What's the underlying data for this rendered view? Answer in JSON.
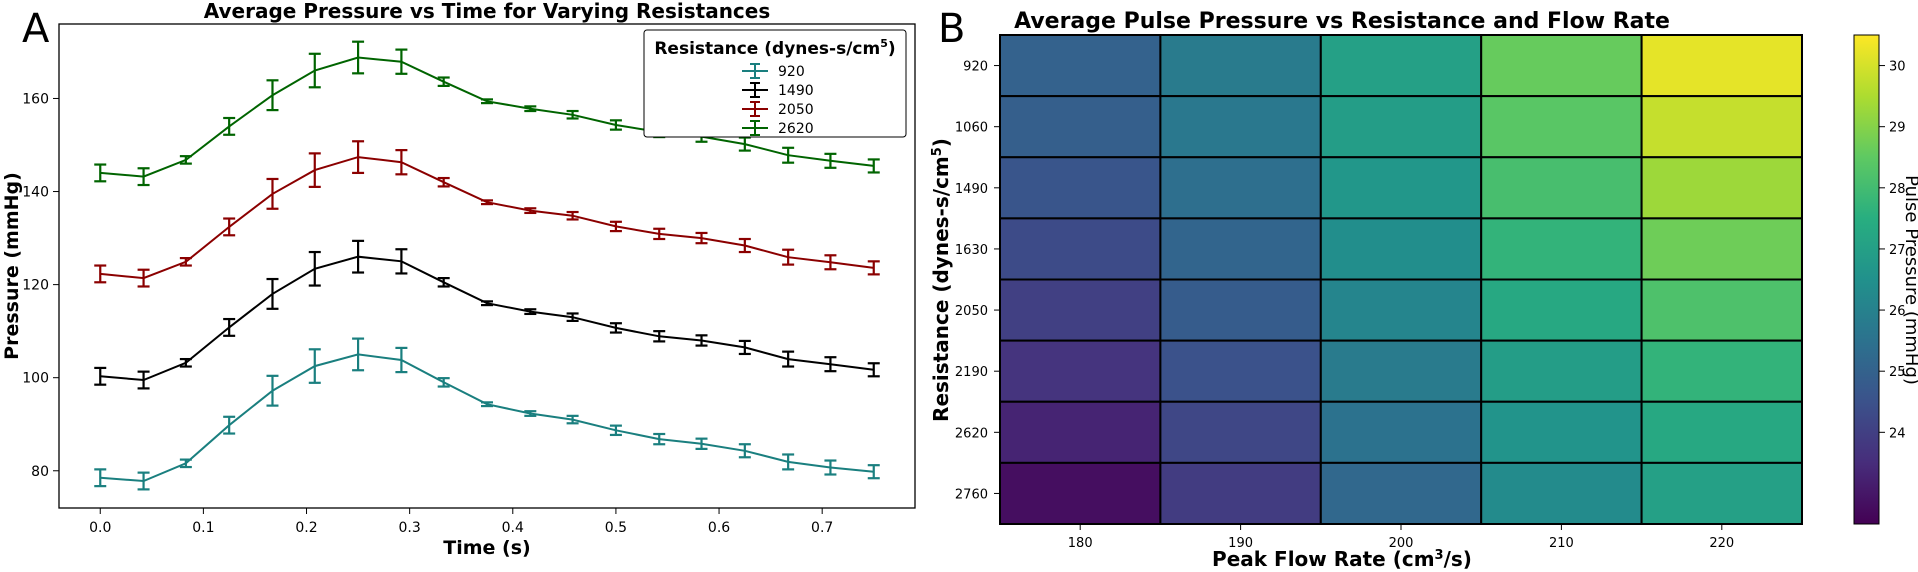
{
  "panel_labels": {
    "a": "A",
    "b": "B"
  },
  "chart_data": [
    {
      "type": "line",
      "title": "Average Pressure vs Time for Varying Resistances",
      "xlabel": "Time (s)",
      "ylabel": "Pressure (mmHg)",
      "xlim": [
        -0.04,
        0.79
      ],
      "ylim": [
        72,
        176
      ],
      "xticks": [
        0.0,
        0.1,
        0.2,
        0.3,
        0.4,
        0.5,
        0.6,
        0.7
      ],
      "xtick_labels": [
        "0.0",
        "0.1",
        "0.2",
        "0.3",
        "0.4",
        "0.5",
        "0.6",
        "0.7"
      ],
      "yticks": [
        80,
        100,
        120,
        140,
        160
      ],
      "ytick_labels": [
        "80",
        "100",
        "120",
        "140",
        "160"
      ],
      "legend_title": "Resistance (dynes-s/cm",
      "legend_title_sup": "5",
      "legend_title_end": ")",
      "legend_position": "top-right",
      "x": [
        0.0,
        0.042,
        0.083,
        0.125,
        0.167,
        0.208,
        0.25,
        0.292,
        0.333,
        0.375,
        0.417,
        0.458,
        0.5,
        0.542,
        0.583,
        0.625,
        0.667,
        0.708,
        0.75
      ],
      "series": [
        {
          "name": "920",
          "color": "#1a7f7f",
          "values": [
            78.5,
            77.8,
            81.6,
            89.8,
            97.2,
            102.5,
            105.0,
            103.8,
            99.0,
            94.3,
            92.3,
            91.0,
            88.7,
            86.8,
            85.8,
            84.3,
            81.9,
            80.7,
            79.8
          ],
          "errors": [
            1.8,
            1.8,
            0.8,
            1.8,
            3.2,
            3.6,
            3.4,
            2.6,
            0.9,
            0.4,
            0.5,
            0.8,
            1.0,
            1.1,
            1.1,
            1.4,
            1.6,
            1.5,
            1.4
          ]
        },
        {
          "name": "1490",
          "color": "#000000",
          "values": [
            100.3,
            99.5,
            103.2,
            110.8,
            118.0,
            123.4,
            126.0,
            125.0,
            120.5,
            116.0,
            114.2,
            113.0,
            110.7,
            108.9,
            108.0,
            106.5,
            104.0,
            102.9,
            101.7
          ],
          "errors": [
            1.8,
            1.8,
            0.8,
            1.8,
            3.2,
            3.6,
            3.4,
            2.6,
            0.9,
            0.4,
            0.5,
            0.8,
            1.0,
            1.1,
            1.1,
            1.4,
            1.6,
            1.5,
            1.4
          ]
        },
        {
          "name": "2050",
          "color": "#8b0000",
          "values": [
            122.3,
            121.4,
            124.9,
            132.4,
            139.5,
            144.6,
            147.4,
            146.3,
            142.0,
            137.7,
            135.9,
            134.8,
            132.5,
            130.9,
            130.0,
            128.4,
            125.9,
            124.8,
            123.6
          ],
          "errors": [
            1.8,
            1.8,
            0.8,
            1.8,
            3.2,
            3.6,
            3.4,
            2.6,
            0.9,
            0.4,
            0.5,
            0.8,
            1.0,
            1.1,
            1.1,
            1.4,
            1.6,
            1.5,
            1.4
          ]
        },
        {
          "name": "2620",
          "color": "#006400",
          "values": [
            144.0,
            143.2,
            146.8,
            154.0,
            160.7,
            166.0,
            168.8,
            167.9,
            163.6,
            159.4,
            157.8,
            156.5,
            154.3,
            152.8,
            151.8,
            150.2,
            147.8,
            146.6,
            145.5
          ],
          "errors": [
            1.8,
            1.8,
            0.8,
            1.8,
            3.2,
            3.6,
            3.4,
            2.6,
            0.9,
            0.4,
            0.5,
            0.8,
            1.0,
            1.1,
            1.1,
            1.4,
            1.6,
            1.5,
            1.4
          ]
        }
      ]
    },
    {
      "type": "heatmap",
      "title": "Average Pulse Pressure vs Resistance and Flow Rate",
      "xlabel": "Peak Flow Rate (cm",
      "xlabel_sup": "3",
      "xlabel_end": "/s)",
      "ylabel": "Resistance (dynes-s/cm",
      "ylabel_sup": "5",
      "ylabel_end": ")",
      "xlim": [
        175,
        225
      ],
      "x_categories": [
        180,
        190,
        200,
        210,
        220
      ],
      "xtick_labels": [
        "180",
        "190",
        "200",
        "210",
        "220"
      ],
      "y_categories": [
        "920",
        "1060",
        "1490",
        "1630",
        "2050",
        "2190",
        "2620",
        "2760"
      ],
      "values": [
        [
          25.0,
          25.8,
          27.0,
          28.6,
          30.2
        ],
        [
          24.9,
          25.7,
          26.9,
          28.4,
          29.8
        ],
        [
          24.6,
          25.4,
          26.7,
          28.1,
          29.3
        ],
        [
          24.3,
          25.1,
          26.4,
          27.7,
          28.7
        ],
        [
          24.0,
          24.8,
          26.1,
          27.3,
          28.2
        ],
        [
          23.7,
          24.5,
          25.8,
          26.9,
          27.7
        ],
        [
          23.3,
          24.2,
          25.5,
          26.6,
          27.3
        ],
        [
          22.8,
          23.9,
          25.2,
          26.3,
          27.0
        ]
      ],
      "colorbar_label": "Pulse Pressure (mmHg)",
      "colorbar_range": [
        22.5,
        30.5
      ],
      "colorbar_ticks": [
        24,
        25,
        26,
        27,
        28,
        29,
        30
      ],
      "colorbar_tick_labels": [
        "24",
        "25",
        "26",
        "27",
        "28",
        "29",
        "30"
      ],
      "colormap": "viridis"
    }
  ]
}
